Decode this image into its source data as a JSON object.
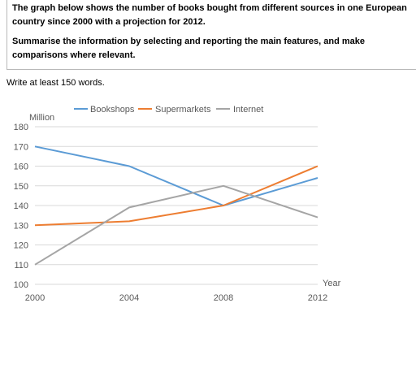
{
  "task": {
    "line1": "The graph below shows the number of books bought from different sources in one European country since 2000 with a projection for 2012.",
    "line2": "Summarise the information by selecting and reporting the main features, and make comparisons where relevant."
  },
  "instruction": "Write at least 150 words.",
  "chart_data": {
    "type": "line",
    "x": [
      2000,
      2004,
      2008,
      2012
    ],
    "categories": [
      "2000",
      "2004",
      "2008",
      "2012"
    ],
    "ylabel": "Million",
    "xlabel": "Year",
    "ylim": [
      100,
      180
    ],
    "yticks": [
      100,
      110,
      120,
      130,
      140,
      150,
      160,
      170,
      180
    ],
    "grid": true,
    "legend": "top",
    "series": [
      {
        "name": "Bookshops",
        "color": "#5b9bd5",
        "values": [
          170,
          160,
          140,
          154
        ]
      },
      {
        "name": "Supermarkets",
        "color": "#ed7d31",
        "values": [
          130,
          132,
          140,
          160
        ]
      },
      {
        "name": "Internet",
        "color": "#a5a5a5",
        "values": [
          110,
          139,
          150,
          134
        ]
      }
    ]
  }
}
